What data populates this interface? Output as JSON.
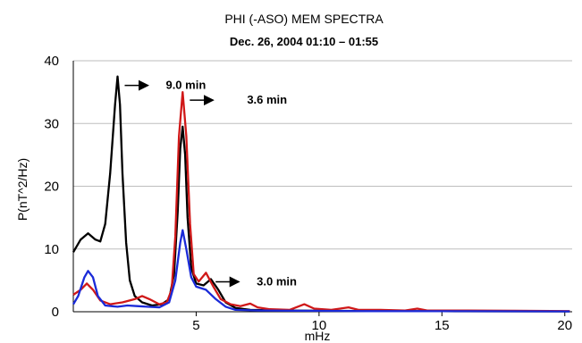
{
  "chart_data": {
    "type": "line",
    "title": "PHI (-ASO) MEM SPECTRA",
    "subtitle": "Dec. 26, 2004  01:10 – 01:55",
    "xlabel": "mHz",
    "ylabel": "P(nT^2/Hz)",
    "xlim": [
      0,
      20.3
    ],
    "ylim": [
      0,
      40
    ],
    "x_ticks": [
      5,
      10,
      15,
      20
    ],
    "y_ticks": [
      0,
      10,
      20,
      30,
      40
    ],
    "grid": "horizontal",
    "series": [
      {
        "color": "#000000",
        "points": [
          [
            0.0,
            9.5
          ],
          [
            0.3,
            11.5
          ],
          [
            0.6,
            12.5
          ],
          [
            0.9,
            11.5
          ],
          [
            1.1,
            11.2
          ],
          [
            1.3,
            14
          ],
          [
            1.5,
            22
          ],
          [
            1.7,
            33
          ],
          [
            1.8,
            37.5
          ],
          [
            1.9,
            33
          ],
          [
            2.0,
            22
          ],
          [
            2.15,
            11
          ],
          [
            2.3,
            5
          ],
          [
            2.5,
            2.5
          ],
          [
            2.8,
            1.5
          ],
          [
            3.2,
            1.0
          ],
          [
            3.6,
            1.2
          ],
          [
            3.9,
            2.0
          ],
          [
            4.1,
            6
          ],
          [
            4.25,
            16
          ],
          [
            4.35,
            26
          ],
          [
            4.45,
            29.5
          ],
          [
            4.55,
            25
          ],
          [
            4.65,
            15
          ],
          [
            4.8,
            7
          ],
          [
            5.0,
            4.5
          ],
          [
            5.3,
            4.2
          ],
          [
            5.6,
            5.2
          ],
          [
            5.9,
            3.5
          ],
          [
            6.2,
            1.5
          ],
          [
            6.6,
            0.6
          ],
          [
            7.2,
            0.3
          ],
          [
            8.5,
            0.2
          ],
          [
            10,
            0.15
          ],
          [
            12,
            0.1
          ],
          [
            15,
            0.08
          ],
          [
            20.2,
            0.05
          ]
        ]
      },
      {
        "color": "#d01818",
        "points": [
          [
            0.0,
            2.7
          ],
          [
            0.3,
            3.5
          ],
          [
            0.55,
            4.5
          ],
          [
            0.8,
            3.5
          ],
          [
            1.1,
            1.8
          ],
          [
            1.5,
            1.2
          ],
          [
            2.0,
            1.5
          ],
          [
            2.5,
            2.0
          ],
          [
            2.8,
            2.5
          ],
          [
            3.1,
            2.0
          ],
          [
            3.5,
            1.2
          ],
          [
            3.8,
            1.5
          ],
          [
            4.0,
            3.5
          ],
          [
            4.15,
            12
          ],
          [
            4.3,
            28
          ],
          [
            4.45,
            35
          ],
          [
            4.6,
            28
          ],
          [
            4.75,
            14
          ],
          [
            4.9,
            6
          ],
          [
            5.1,
            4.8
          ],
          [
            5.4,
            6.2
          ],
          [
            5.7,
            4.0
          ],
          [
            6.0,
            2.0
          ],
          [
            6.4,
            1.2
          ],
          [
            6.8,
            0.9
          ],
          [
            7.2,
            1.3
          ],
          [
            7.5,
            0.7
          ],
          [
            8.0,
            0.4
          ],
          [
            8.8,
            0.3
          ],
          [
            9.4,
            1.2
          ],
          [
            9.8,
            0.5
          ],
          [
            10.5,
            0.3
          ],
          [
            11.2,
            0.7
          ],
          [
            11.6,
            0.3
          ],
          [
            12.5,
            0.3
          ],
          [
            13.5,
            0.2
          ],
          [
            14.0,
            0.5
          ],
          [
            14.4,
            0.2
          ],
          [
            16,
            0.2
          ],
          [
            18,
            0.15
          ],
          [
            20.2,
            0.1
          ]
        ]
      },
      {
        "color": "#1a2ad8",
        "points": [
          [
            0.0,
            1.2
          ],
          [
            0.2,
            2.5
          ],
          [
            0.45,
            5.5
          ],
          [
            0.6,
            6.5
          ],
          [
            0.8,
            5.5
          ],
          [
            1.0,
            2.5
          ],
          [
            1.3,
            1.0
          ],
          [
            1.8,
            0.8
          ],
          [
            2.2,
            1.0
          ],
          [
            2.6,
            0.9
          ],
          [
            3.0,
            0.8
          ],
          [
            3.5,
            0.7
          ],
          [
            3.9,
            1.5
          ],
          [
            4.15,
            5
          ],
          [
            4.35,
            11
          ],
          [
            4.45,
            13
          ],
          [
            4.6,
            10
          ],
          [
            4.8,
            5.5
          ],
          [
            5.0,
            4.0
          ],
          [
            5.4,
            3.5
          ],
          [
            5.8,
            2.0
          ],
          [
            6.2,
            0.8
          ],
          [
            6.6,
            0.3
          ],
          [
            7.5,
            0.2
          ],
          [
            9,
            0.15
          ],
          [
            12,
            0.1
          ],
          [
            16,
            0.08
          ],
          [
            20.2,
            0.05
          ]
        ]
      }
    ],
    "annotations": [
      {
        "text": "9.0 min",
        "x": 1.8,
        "y": 37.5
      },
      {
        "text": "3.6 min",
        "x": 4.45,
        "y": 35
      },
      {
        "text": "3.0 min",
        "x": 5.5,
        "y": 6.2
      }
    ]
  }
}
